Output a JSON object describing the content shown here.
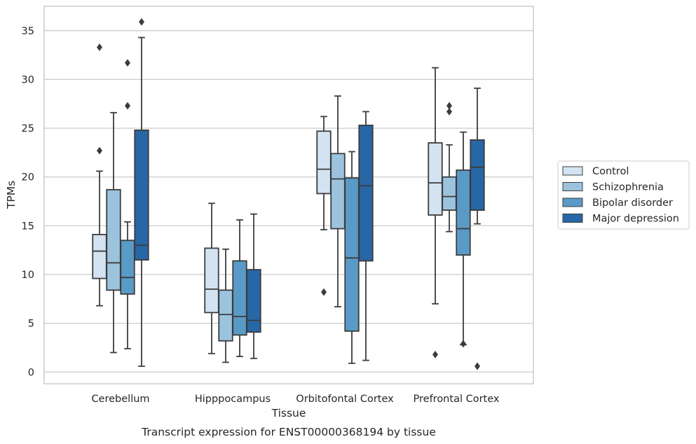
{
  "chart_data": {
    "type": "boxplot",
    "title": "",
    "caption": "Transcript expression for ENST00000368194 by tissue",
    "xlabel": "Tissue",
    "ylabel": "TPMs",
    "ylim": [
      -1.2,
      37.5
    ],
    "yticks": [
      0,
      5,
      10,
      15,
      20,
      25,
      30,
      35
    ],
    "grid": "horizontal",
    "legend_position": "right",
    "categories": [
      "Cerebellum",
      "Hipppocampus",
      "Orbitofontal Cortex",
      "Prefrontal Cortex"
    ],
    "series": [
      {
        "name": "Control",
        "color": "#d4e3f1",
        "boxes": [
          {
            "whislo": 6.8,
            "q1": 9.6,
            "med": 12.4,
            "q3": 14.1,
            "whishi": 20.6,
            "fliers": [
              22.7,
              33.3
            ]
          },
          {
            "whislo": 1.9,
            "q1": 6.1,
            "med": 8.5,
            "q3": 12.7,
            "whishi": 17.3,
            "fliers": []
          },
          {
            "whislo": 14.6,
            "q1": 18.3,
            "med": 20.8,
            "q3": 24.7,
            "whishi": 26.2,
            "fliers": [
              8.2
            ]
          },
          {
            "whislo": 7.0,
            "q1": 16.1,
            "med": 19.4,
            "q3": 23.5,
            "whishi": 31.2,
            "fliers": [
              1.8
            ]
          }
        ]
      },
      {
        "name": "Schizophrenia",
        "color": "#9cc3de",
        "boxes": [
          {
            "whislo": 2.0,
            "q1": 8.4,
            "med": 11.2,
            "q3": 18.7,
            "whishi": 26.6,
            "fliers": []
          },
          {
            "whislo": 1.0,
            "q1": 3.2,
            "med": 5.9,
            "q3": 8.4,
            "whishi": 12.6,
            "fliers": []
          },
          {
            "whislo": 6.7,
            "q1": 14.7,
            "med": 19.8,
            "q3": 22.4,
            "whishi": 28.3,
            "fliers": []
          },
          {
            "whislo": 14.4,
            "q1": 16.6,
            "med": 18.0,
            "q3": 20.0,
            "whishi": 23.3,
            "fliers": [
              26.7,
              27.3
            ]
          }
        ]
      },
      {
        "name": "Bipolar disorder",
        "color": "#5a9ac7",
        "boxes": [
          {
            "whislo": 2.4,
            "q1": 8.0,
            "med": 9.7,
            "q3": 13.5,
            "whishi": 15.4,
            "fliers": [
              27.3,
              31.7
            ]
          },
          {
            "whislo": 1.6,
            "q1": 3.8,
            "med": 5.7,
            "q3": 11.4,
            "whishi": 15.6,
            "fliers": []
          },
          {
            "whislo": 0.9,
            "q1": 4.2,
            "med": 11.7,
            "q3": 19.9,
            "whishi": 22.6,
            "fliers": []
          },
          {
            "whislo": 2.8,
            "q1": 12.0,
            "med": 14.7,
            "q3": 20.7,
            "whishi": 24.6,
            "fliers": [
              2.9
            ]
          }
        ]
      },
      {
        "name": "Major depression",
        "color": "#2767a6",
        "boxes": [
          {
            "whislo": 0.6,
            "q1": 11.5,
            "med": 13.0,
            "q3": 24.8,
            "whishi": 34.3,
            "fliers": [
              35.9
            ]
          },
          {
            "whislo": 1.4,
            "q1": 4.1,
            "med": 5.3,
            "q3": 10.5,
            "whishi": 16.2,
            "fliers": []
          },
          {
            "whislo": 1.2,
            "q1": 11.4,
            "med": 19.1,
            "q3": 25.3,
            "whishi": 26.7,
            "fliers": []
          },
          {
            "whislo": 15.2,
            "q1": 16.6,
            "med": 21.0,
            "q3": 23.8,
            "whishi": 29.1,
            "fliers": [
              0.6
            ]
          }
        ]
      }
    ]
  },
  "colors": {
    "background": "#ffffff",
    "grid": "#cccccc",
    "frame": "#cccccc",
    "box_edge": "#3c3c3c"
  }
}
